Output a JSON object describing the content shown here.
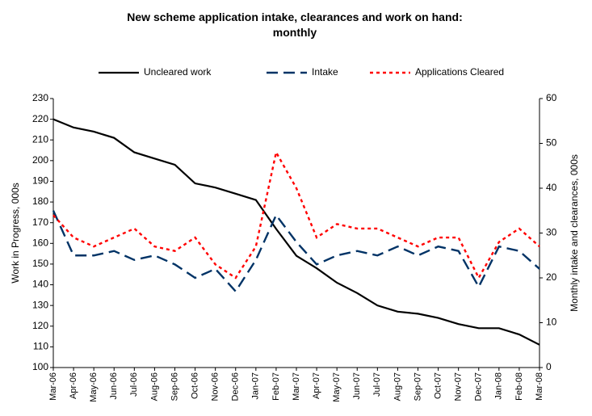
{
  "chart_data": {
    "type": "line",
    "title": "New scheme application intake, clearances and work on hand: monthly",
    "ylabel": "Work in Progress, 000s",
    "y2label": "Monthly intake and clearances, 000s",
    "categories": [
      "Mar-06",
      "Apr-06",
      "May-06",
      "Jun-06",
      "Jul-06",
      "Aug-06",
      "Sep-06",
      "Oct-06",
      "Nov-06",
      "Dec-06",
      "Jan-07",
      "Feb-07",
      "Mar-07",
      "Apr-07",
      "May-07",
      "Jun-07",
      "Jul-07",
      "Aug-07",
      "Sep-07",
      "Oct-07",
      "Nov-07",
      "Dec-07",
      "Jan-08",
      "Feb-08",
      "Mar-08"
    ],
    "series": [
      {
        "name": "Uncleared work",
        "color": "#000000",
        "dash": "solid",
        "values": [
          220,
          216,
          214,
          211,
          204,
          201,
          198,
          189,
          187,
          184,
          181,
          167,
          154,
          148,
          141,
          136,
          130,
          127,
          126,
          124,
          121,
          119,
          119,
          116,
          111
        ]
      },
      {
        "name": "Intake",
        "color": "#003366",
        "dash": "dashed",
        "axis": "y2",
        "values": [
          35,
          25,
          25,
          26,
          24,
          25,
          23,
          20,
          22,
          17,
          24,
          34,
          28,
          23,
          25,
          26,
          25,
          27,
          25,
          27,
          26,
          18,
          27,
          26,
          22
        ]
      },
      {
        "name": "Applications Cleared",
        "color": "#ff0000",
        "dash": "dotted",
        "axis": "y2",
        "values": [
          34,
          29,
          27,
          29,
          31,
          27,
          26,
          29,
          23,
          20,
          27,
          48,
          40,
          29,
          32,
          31,
          31,
          29,
          27,
          29,
          29,
          20,
          28,
          31,
          27
        ]
      }
    ],
    "ylim": [
      100,
      230
    ],
    "yticks": [
      100,
      110,
      120,
      130,
      140,
      150,
      160,
      170,
      180,
      190,
      200,
      210,
      220,
      230
    ],
    "y2lim": [
      0,
      60
    ],
    "y2ticks": [
      0,
      10,
      20,
      30,
      40,
      50,
      60
    ],
    "grid": false,
    "legend": "top"
  }
}
